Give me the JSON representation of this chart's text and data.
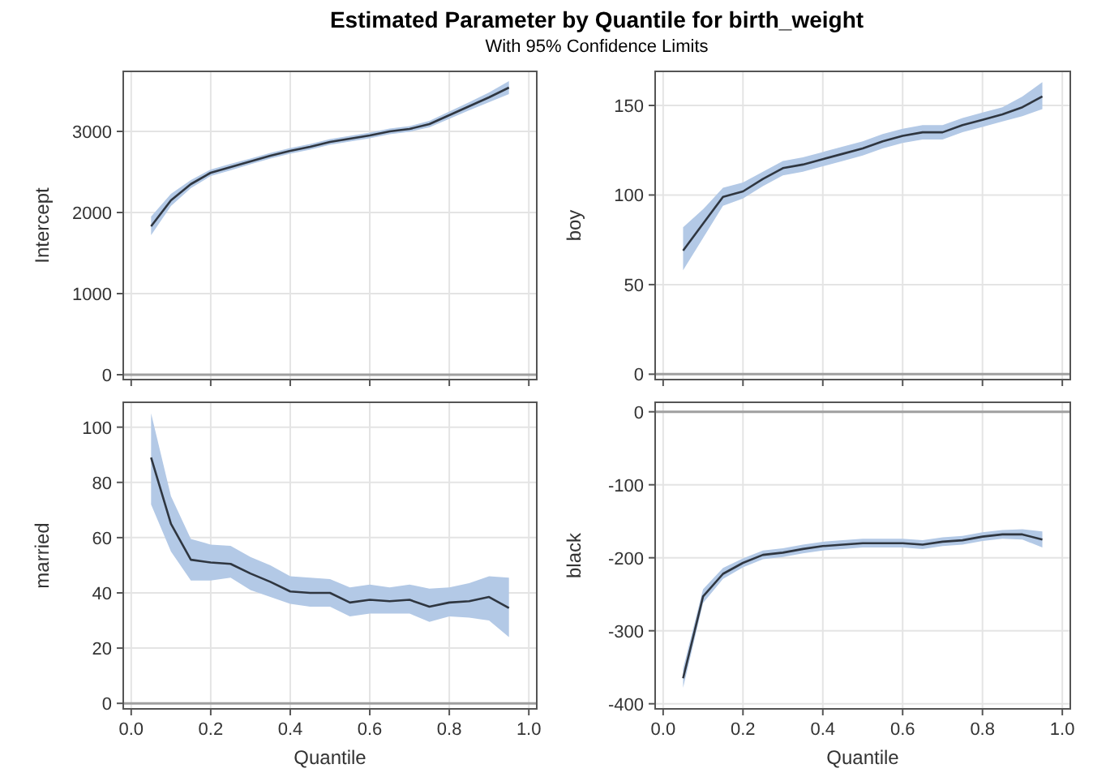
{
  "chart_data": [
    {
      "type": "line",
      "title": "Estimated Parameter by Quantile for birth_weight",
      "subtitle": "With 95% Confidence Limits",
      "ylabel": "Intercept",
      "x": [
        0.05,
        0.1,
        0.15,
        0.2,
        0.25,
        0.3,
        0.35,
        0.4,
        0.45,
        0.5,
        0.55,
        0.6,
        0.65,
        0.7,
        0.75,
        0.8,
        0.85,
        0.9,
        0.95
      ],
      "series": [
        {
          "color": "#2f3640",
          "values": [
            1830,
            2150,
            2350,
            2490,
            2560,
            2630,
            2700,
            2760,
            2810,
            2870,
            2910,
            2950,
            3000,
            3030,
            3090,
            3200,
            3310,
            3420,
            3540
          ],
          "lower": [
            1720,
            2080,
            2300,
            2450,
            2520,
            2595,
            2665,
            2725,
            2775,
            2835,
            2875,
            2915,
            2965,
            2995,
            3050,
            3155,
            3260,
            3360,
            3460
          ],
          "upper": [
            1950,
            2230,
            2400,
            2530,
            2600,
            2665,
            2735,
            2795,
            2845,
            2905,
            2945,
            2985,
            3035,
            3065,
            3130,
            3245,
            3360,
            3480,
            3620
          ]
        }
      ],
      "xlim": [
        -0.02,
        1.02
      ],
      "ylim": [
        -60,
        3740
      ],
      "xticks": [
        {
          "value": 0,
          "label": null
        },
        {
          "value": 0.2,
          "label": null
        },
        {
          "value": 0.4,
          "label": null
        },
        {
          "value": 0.6,
          "label": null
        },
        {
          "value": 0.8,
          "label": null
        },
        {
          "value": 1,
          "label": null
        }
      ],
      "yticks": [
        0,
        1000,
        2000,
        3000
      ],
      "grid": true,
      "tick_labels": "y",
      "ref_lines": [
        {
          "axis": "y",
          "value": 0,
          "color": "#a0a0a0"
        }
      ]
    },
    {
      "type": "line",
      "ylabel": "boy",
      "x": [
        0.05,
        0.1,
        0.15,
        0.2,
        0.25,
        0.3,
        0.35,
        0.4,
        0.45,
        0.5,
        0.55,
        0.6,
        0.65,
        0.7,
        0.75,
        0.8,
        0.85,
        0.9,
        0.95
      ],
      "series": [
        {
          "color": "#2f3640",
          "values": [
            69,
            84,
            99,
            102,
            109,
            115,
            117,
            120,
            123,
            126,
            130,
            133,
            135,
            135,
            139,
            142,
            145,
            149,
            155
          ],
          "lower": [
            58,
            76,
            94,
            98,
            105,
            111,
            113,
            116,
            119,
            122,
            126,
            129,
            131,
            131,
            135,
            138,
            141,
            144,
            148
          ],
          "upper": [
            82,
            92,
            104,
            107,
            113,
            119,
            121,
            124,
            127,
            130,
            134,
            137,
            139,
            139,
            143,
            146,
            149,
            155,
            163
          ]
        }
      ],
      "xlim": [
        -0.02,
        1.02
      ],
      "ylim": [
        -3,
        169
      ],
      "xticks": [
        {
          "value": 0,
          "label": null
        },
        {
          "value": 0.2,
          "label": null
        },
        {
          "value": 0.4,
          "label": null
        },
        {
          "value": 0.6,
          "label": null
        },
        {
          "value": 0.8,
          "label": null
        },
        {
          "value": 1,
          "label": null
        }
      ],
      "yticks": [
        0,
        50,
        100,
        150
      ],
      "grid": true,
      "tick_labels": "y",
      "ref_lines": [
        {
          "axis": "y",
          "value": 0,
          "color": "#a0a0a0"
        }
      ]
    },
    {
      "type": "line",
      "xlabel": "Quantile",
      "ylabel": "married",
      "x": [
        0.05,
        0.1,
        0.15,
        0.2,
        0.25,
        0.3,
        0.35,
        0.4,
        0.45,
        0.5,
        0.55,
        0.6,
        0.65,
        0.7,
        0.75,
        0.8,
        0.85,
        0.9,
        0.95
      ],
      "series": [
        {
          "color": "#2f3640",
          "values": [
            89,
            65,
            52,
            51,
            50.5,
            47,
            44,
            40.5,
            40,
            40,
            36.5,
            37.5,
            37,
            37.5,
            35,
            36.5,
            37,
            38.5,
            34.5
          ],
          "lower": [
            72,
            55,
            44.5,
            44.5,
            45.5,
            41,
            38.5,
            36,
            35,
            35,
            31.5,
            32.5,
            32.5,
            32.5,
            29.5,
            31.5,
            31,
            30,
            24
          ],
          "upper": [
            105,
            75,
            59.5,
            57.5,
            57,
            53,
            50,
            46,
            45.5,
            45,
            42,
            43,
            42,
            43,
            41.5,
            42,
            43.5,
            46,
            45.5
          ]
        }
      ],
      "xlim": [
        -0.02,
        1.02
      ],
      "ylim": [
        -2,
        109
      ],
      "xticks": [
        {
          "value": 0,
          "label": "0.0"
        },
        0.2,
        0.4,
        0.6,
        0.8,
        {
          "value": 1,
          "label": "1.0"
        }
      ],
      "yticks": [
        0,
        20,
        40,
        60,
        80,
        100
      ],
      "grid": true,
      "ref_lines": [
        {
          "axis": "y",
          "value": 0,
          "color": "#a0a0a0"
        }
      ]
    },
    {
      "type": "line",
      "xlabel": "Quantile",
      "ylabel": "black",
      "x": [
        0.05,
        0.1,
        0.15,
        0.2,
        0.25,
        0.3,
        0.35,
        0.4,
        0.45,
        0.5,
        0.55,
        0.6,
        0.65,
        0.7,
        0.75,
        0.8,
        0.85,
        0.9,
        0.95
      ],
      "series": [
        {
          "color": "#2f3640",
          "values": [
            -365,
            -253,
            -222,
            -207,
            -196,
            -193,
            -188,
            -184,
            -182,
            -180,
            -180,
            -180,
            -182,
            -178,
            -176,
            -171,
            -168,
            -168,
            -175
          ],
          "lower": [
            -378,
            -262,
            -229,
            -213,
            -202,
            -199,
            -194,
            -190,
            -188,
            -186,
            -186,
            -186,
            -188,
            -184,
            -182,
            -177,
            -174,
            -175,
            -186
          ],
          "upper": [
            -352,
            -243,
            -214,
            -201,
            -190,
            -187,
            -182,
            -178,
            -176,
            -174,
            -174,
            -174,
            -176,
            -172,
            -170,
            -165,
            -162,
            -161,
            -164
          ]
        }
      ],
      "xlim": [
        -0.02,
        1.02
      ],
      "ylim": [
        -407,
        13
      ],
      "xticks": [
        {
          "value": 0,
          "label": "0.0"
        },
        0.2,
        0.4,
        0.6,
        0.8,
        {
          "value": 1,
          "label": "1.0"
        }
      ],
      "yticks": [
        -400,
        -300,
        -200,
        -100,
        0
      ],
      "grid": true,
      "ref_lines": [
        {
          "axis": "y",
          "value": 0,
          "color": "#a0a0a0"
        }
      ]
    }
  ]
}
